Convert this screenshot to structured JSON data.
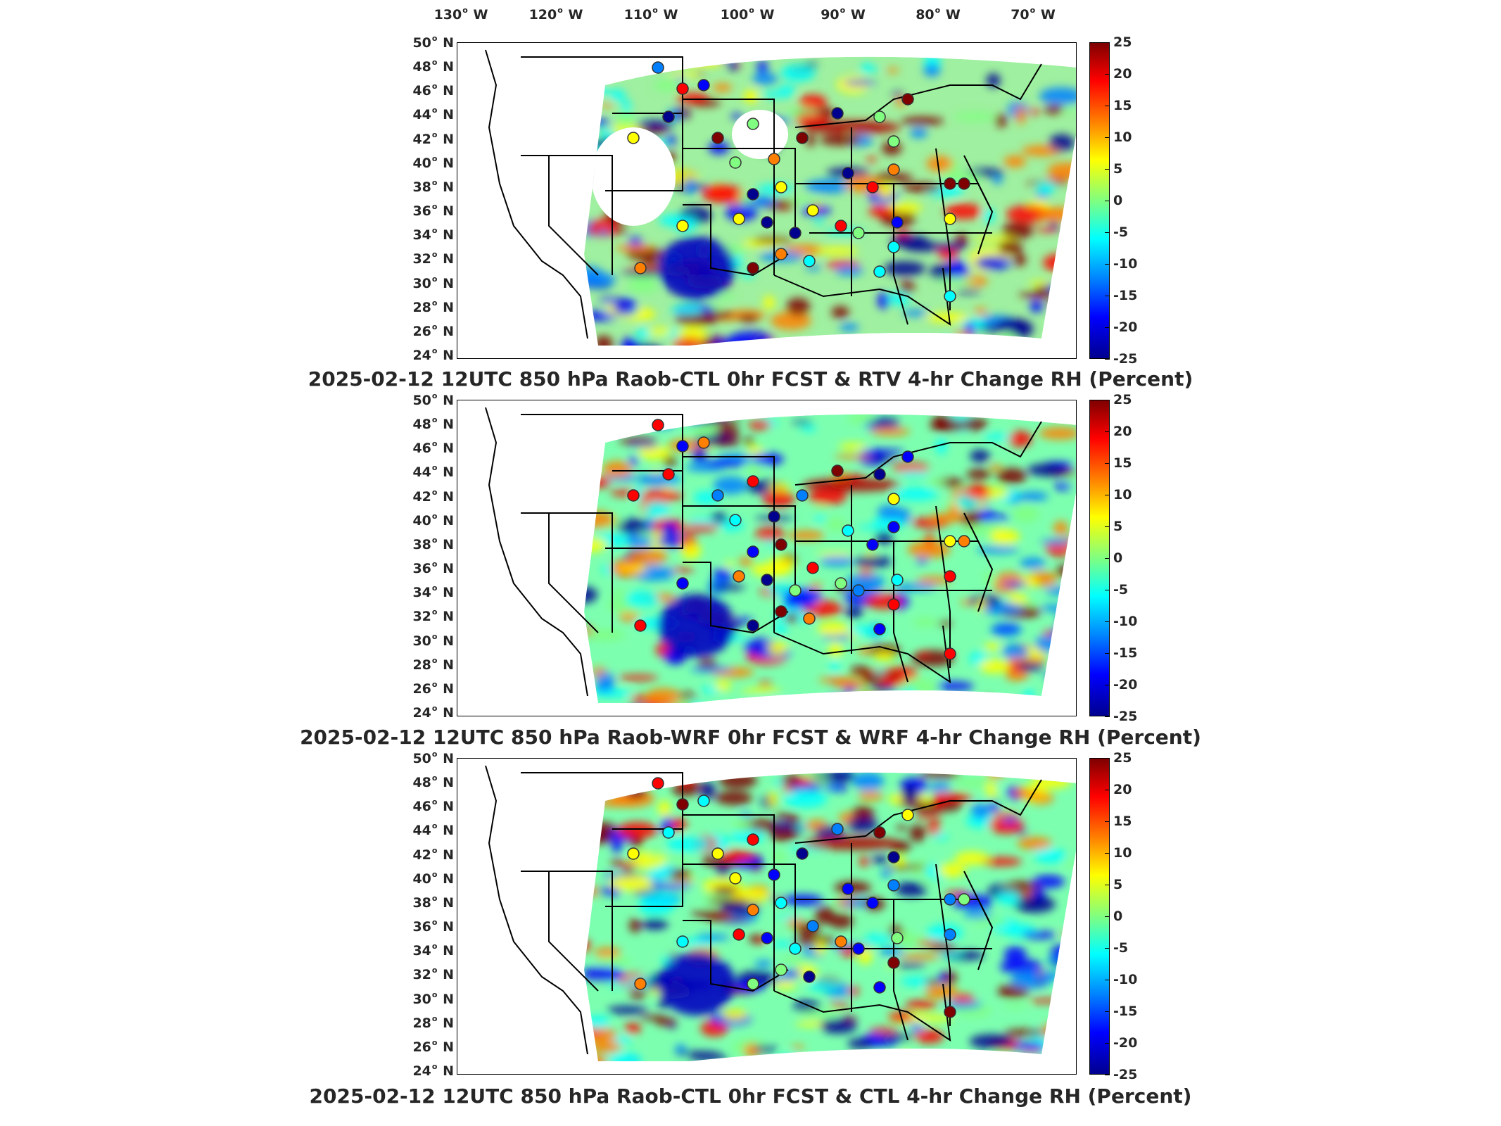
{
  "longitude_labels": [
    "130",
    "120",
    "110",
    "100",
    "90",
    "80",
    "70"
  ],
  "longitude_hemisphere": "W",
  "latitude_labels": [
    "50",
    "48",
    "46",
    "44",
    "42",
    "40",
    "38",
    "36",
    "34",
    "32",
    "30",
    "28",
    "26",
    "24"
  ],
  "latitude_hemisphere": "N",
  "colorbar": {
    "ticks": [
      "25",
      "20",
      "15",
      "10",
      "5",
      "0",
      "-5",
      "-10",
      "-15",
      "-20",
      "-25"
    ],
    "range": [
      -25,
      25
    ],
    "colormap": "jet"
  },
  "panels": [
    {
      "title": "2025-02-12 12UTC 850 hPa Raob-CTL 0hr FCST & RTV 4-hr Change RH (Percent)"
    },
    {
      "title": "2025-02-12 12UTC 850 hPa Raob-WRF 0hr FCST & WRF 4-hr Change RH (Percent)"
    },
    {
      "title": "2025-02-12 12UTC 850 hPa Raob-CTL 0hr FCST & CTL 4-hr Change RH (Percent)"
    }
  ],
  "colors": {
    "positive_strong": "#b00000",
    "positive": "#ff8c00",
    "neutral": "#7cfc7c",
    "negative": "#00a0ff",
    "negative_strong": "#0000b0"
  }
}
